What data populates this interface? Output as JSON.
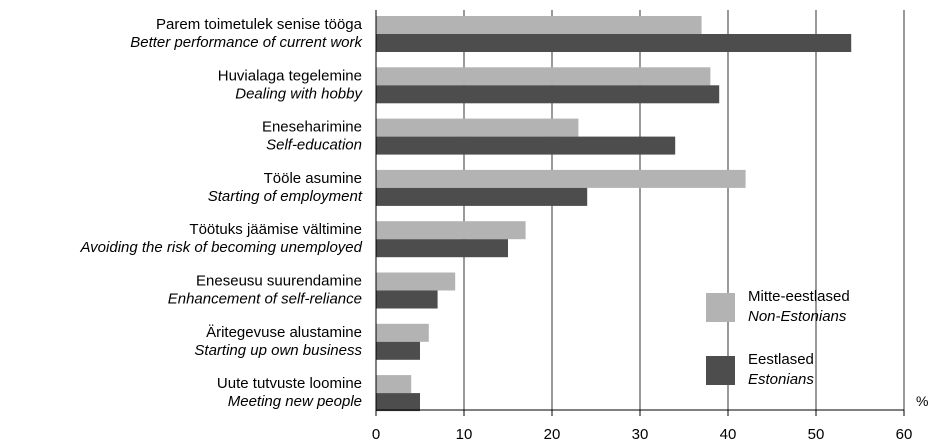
{
  "chart_data": {
    "type": "bar",
    "orientation": "horizontal",
    "categories": [
      {
        "et": "Parem toimetulek senise tööga",
        "en": "Better performance of current work"
      },
      {
        "et": "Huvialaga tegelemine",
        "en": "Dealing with hobby"
      },
      {
        "et": "Eneseharimine",
        "en": "Self-education"
      },
      {
        "et": "Tööle asumine",
        "en": "Starting of employment"
      },
      {
        "et": "Töötuks jäämise vältimine",
        "en": "Avoiding the risk of becoming unemployed"
      },
      {
        "et": "Eneseusu suurendamine",
        "en": "Enhancement of self-reliance"
      },
      {
        "et": "Äritegevuse alustamine",
        "en": "Starting up own business"
      },
      {
        "et": "Uute tutvuste loomine",
        "en": "Meeting new people"
      }
    ],
    "series": [
      {
        "name": "Mitte-eestlased",
        "name_en": "Non-Estonians",
        "color": "#b3b3b3",
        "values": [
          37,
          38,
          23,
          42,
          17,
          9,
          6,
          4
        ]
      },
      {
        "name": "Eestlased",
        "name_en": "Estonians",
        "color": "#4d4d4d",
        "values": [
          54,
          39,
          34,
          24,
          15,
          7,
          5,
          5
        ]
      }
    ],
    "xlim": [
      0,
      60
    ],
    "xticks": [
      0,
      10,
      20,
      30,
      40,
      50,
      60
    ],
    "unit": "%",
    "grid": true,
    "legend_position": "bottom-right"
  }
}
